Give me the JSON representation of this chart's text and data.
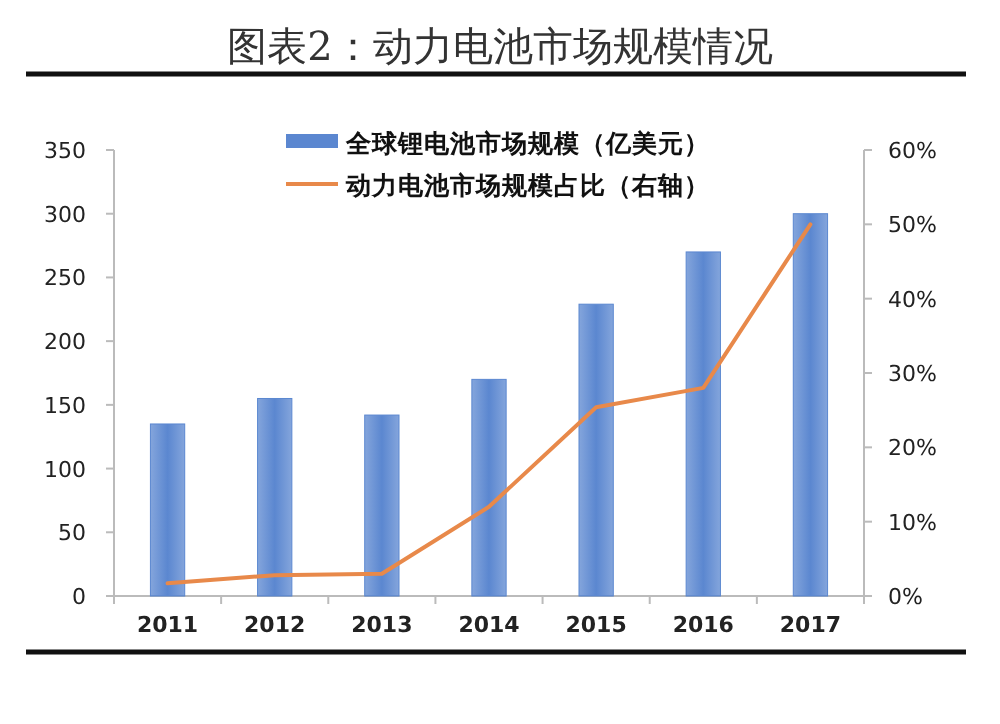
{
  "chart_data": {
    "type": "bar",
    "title": "图表2：动力电池市场规模情况",
    "categories": [
      "2011",
      "2012",
      "2013",
      "2014",
      "2015",
      "2016",
      "2017"
    ],
    "series": [
      {
        "name": "全球锂电池市场规模（亿美元）",
        "color": "#5b87d0",
        "values": [
          135,
          155,
          142,
          170,
          229,
          270,
          300
        ]
      },
      {
        "name": "动力电池市场规模占比（右轴）",
        "type": "line",
        "axis": "y2",
        "color": "#e8894a",
        "values": [
          1.7,
          2.8,
          3.0,
          12,
          25.4,
          28,
          50
        ]
      }
    ],
    "ylim": [
      0,
      350
    ],
    "yticks": [
      0,
      50,
      100,
      150,
      200,
      250,
      300,
      350
    ],
    "y2lim": [
      0,
      60
    ],
    "y2ticks": [
      {
        "value": 0,
        "label": "0%"
      },
      {
        "value": 10,
        "label": "10%"
      },
      {
        "value": 20,
        "label": "20%"
      },
      {
        "value": 30,
        "label": "30%"
      },
      {
        "value": 40,
        "label": "40%"
      },
      {
        "value": 50,
        "label": "50%"
      },
      {
        "value": 60,
        "label": "60%"
      }
    ],
    "grid": false,
    "legend": "top",
    "marker": "none",
    "line_style": "solid"
  }
}
